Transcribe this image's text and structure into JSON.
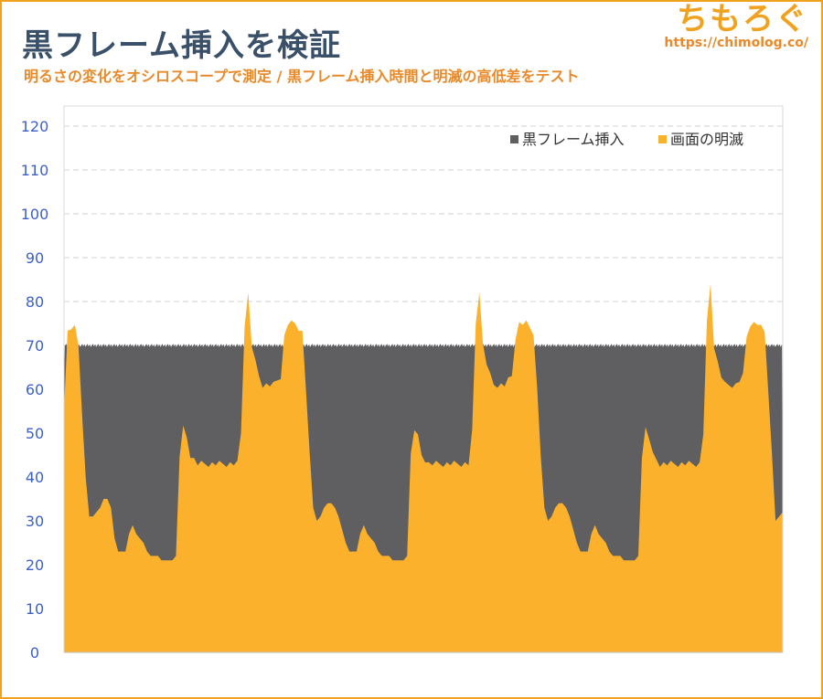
{
  "header": {
    "title": "黒フレーム挿入を検証",
    "subtitle": "明るさの変化をオシロスコープで測定 / 黒フレーム挿入時間と明滅の高低差をテスト",
    "logo_text": "ちもろぐ",
    "logo_url": "https://chimolog.co/"
  },
  "colors": {
    "black_frame": "#5f5f62",
    "flicker": "#fbb12c",
    "frame_border": "#f0a21e",
    "tick_label": "#3c5fcb",
    "gridline": "#d0d0d0"
  },
  "chart_data": {
    "type": "area",
    "title": "",
    "xlabel": "",
    "ylabel": "",
    "ylim": [
      0,
      120
    ],
    "yticks": [
      "0",
      "10",
      "20",
      "30",
      "40",
      "50",
      "60",
      "70",
      "80",
      "90",
      "100",
      "110",
      "120"
    ],
    "grid": true,
    "legend_position": "top-right",
    "series": [
      {
        "name": "黒フレーム挿入",
        "color": "#5f5f62",
        "values": [
          62,
          70,
          70,
          70,
          70,
          70,
          70,
          70,
          70,
          70,
          70,
          70,
          70,
          70,
          70,
          70,
          70,
          70,
          70,
          70,
          70,
          70,
          70,
          70,
          70,
          70,
          70,
          70,
          70,
          70,
          70,
          70,
          70,
          70,
          70,
          70,
          70,
          70,
          70,
          70,
          70,
          70,
          70,
          70,
          70,
          70,
          70,
          70,
          70,
          70,
          70,
          70,
          70,
          70,
          70,
          70,
          70,
          70,
          70,
          70,
          70,
          70,
          70,
          70,
          70,
          70,
          70,
          70,
          70,
          70,
          70,
          70,
          70,
          70,
          70,
          70,
          70,
          70,
          70,
          70,
          70,
          70,
          70,
          70,
          70,
          70,
          70,
          70,
          70,
          70,
          70,
          70,
          70,
          70,
          70,
          70,
          70,
          70,
          70,
          70,
          70,
          70,
          70,
          70,
          70,
          70,
          70,
          70,
          70,
          70,
          70,
          70,
          70,
          70,
          70,
          70,
          70,
          70,
          70,
          70,
          70,
          70,
          70,
          70,
          70,
          70,
          70,
          70,
          70,
          70,
          70,
          70,
          70,
          70,
          70,
          70,
          70,
          70,
          70,
          70,
          70,
          70,
          70,
          70,
          70,
          70,
          70,
          70,
          70,
          70,
          70,
          70,
          70,
          70,
          70,
          70,
          70,
          70,
          70,
          70,
          70,
          70,
          70,
          70,
          70,
          70,
          70,
          70,
          70,
          70,
          70,
          70,
          70,
          70,
          70,
          70,
          70,
          70,
          70,
          70,
          70,
          70,
          70,
          70,
          70,
          70,
          70,
          70,
          70,
          70,
          70,
          70,
          70,
          70,
          70,
          70,
          70,
          70,
          70,
          70,
          70,
          70,
          70,
          70,
          70,
          70,
          70,
          70,
          70,
          70,
          70,
          70,
          70,
          70,
          70,
          70,
          70,
          70,
          70,
          70,
          70,
          70,
          70,
          70,
          70,
          70,
          70,
          70,
          70,
          70,
          70,
          70,
          70,
          70,
          70,
          70,
          70,
          70,
          70,
          70,
          70,
          70,
          70,
          70,
          70,
          70,
          70,
          70,
          70,
          70,
          70,
          70,
          70,
          70,
          70,
          70,
          70,
          70,
          70,
          70,
          70,
          70,
          70,
          70,
          70,
          70,
          70,
          70,
          70,
          70,
          70,
          70,
          70,
          70,
          70,
          70,
          70,
          70,
          70,
          70,
          70,
          70,
          70,
          70,
          70,
          70,
          70,
          70,
          70,
          70,
          70,
          70,
          70,
          70,
          70,
          70,
          70,
          70,
          70,
          70,
          70,
          70,
          70,
          70,
          70,
          70,
          70,
          70,
          70,
          70,
          70,
          70,
          70,
          70,
          70,
          70,
          70,
          70,
          70,
          70,
          70,
          70,
          70,
          70,
          70,
          70,
          70,
          70,
          70,
          70,
          70,
          70,
          70,
          70,
          70,
          70,
          70,
          70,
          70,
          70,
          70,
          70,
          70,
          70,
          70,
          70,
          70,
          70,
          70,
          70,
          70,
          70,
          70,
          70,
          70,
          70,
          70,
          70,
          70,
          70,
          70,
          70,
          70,
          70,
          70,
          70,
          70,
          70,
          70,
          70,
          70,
          70,
          70,
          70,
          70,
          70,
          70,
          70,
          70,
          70,
          70,
          70,
          70,
          70,
          70,
          70,
          70,
          70,
          70,
          70,
          70,
          70,
          70,
          70,
          70,
          70,
          70,
          70,
          70,
          70,
          70,
          70,
          70,
          70,
          70,
          70,
          70,
          70,
          70,
          70,
          70,
          70,
          70,
          70,
          70,
          70,
          70,
          70,
          70,
          70,
          70,
          70,
          70,
          70,
          70,
          70,
          70,
          70,
          70,
          70,
          70,
          70,
          70,
          70,
          70,
          70,
          70,
          70,
          70,
          70,
          70,
          70,
          70,
          70,
          70,
          70,
          70,
          70,
          70,
          70,
          70,
          70,
          70,
          70,
          70,
          70,
          70,
          70,
          70,
          70,
          70,
          70,
          70,
          70,
          70,
          70,
          70,
          70,
          70,
          70,
          70,
          70,
          70,
          70,
          70,
          70,
          70,
          70,
          70,
          70,
          70,
          70,
          70,
          70,
          70,
          70,
          70,
          70,
          70,
          70,
          70,
          70,
          70,
          70,
          70,
          70,
          70,
          70,
          70,
          70,
          70,
          70,
          70,
          70,
          70,
          70,
          70,
          70,
          70,
          70,
          70,
          70,
          70,
          70,
          70,
          70,
          70,
          70,
          70,
          70,
          70,
          70,
          70,
          70,
          70,
          70,
          70,
          70,
          70,
          70,
          70,
          70,
          70,
          70,
          70,
          70,
          70,
          70,
          70,
          70,
          70,
          70,
          70,
          70,
          70,
          70,
          70,
          70,
          70,
          70,
          70,
          70,
          70,
          70,
          70,
          70,
          70,
          70,
          70,
          70,
          70,
          70,
          70,
          70,
          70,
          70,
          70,
          70,
          70,
          70,
          70,
          70,
          70,
          70,
          70,
          70,
          70,
          70,
          70,
          70,
          70,
          70,
          70,
          70,
          70,
          70,
          70,
          70,
          70,
          70,
          70,
          70,
          70,
          70,
          70,
          70,
          70,
          70,
          70,
          70,
          70,
          70,
          70,
          70,
          70,
          70,
          70,
          70,
          70,
          70,
          70,
          70,
          70,
          70,
          70,
          70,
          70,
          70,
          70,
          70,
          70,
          70,
          70,
          70,
          70,
          70,
          70,
          70,
          70,
          70,
          70,
          70,
          70,
          70,
          70,
          70,
          70,
          70,
          70,
          70,
          70,
          70,
          70,
          70,
          70,
          70,
          70,
          70,
          70,
          70,
          70,
          70,
          70,
          70,
          70,
          70,
          70,
          70,
          70,
          70,
          70,
          70,
          70,
          70,
          70,
          70,
          70,
          70,
          70,
          70,
          70,
          70,
          70,
          70,
          70,
          70,
          70,
          70,
          70,
          70,
          70,
          70,
          70,
          70,
          70,
          70,
          70,
          70,
          70,
          70,
          70,
          70,
          70,
          70,
          70,
          70,
          70,
          70,
          70,
          70,
          70,
          70,
          70,
          70,
          70,
          70,
          70,
          70,
          70,
          70,
          70,
          70,
          70,
          70,
          70,
          70,
          70,
          70,
          70,
          70,
          70,
          70,
          70,
          70,
          70,
          70,
          70,
          70,
          70,
          70,
          70,
          70,
          70,
          70,
          70,
          70,
          70,
          70,
          70,
          70,
          70,
          70,
          70,
          70,
          70,
          70,
          70,
          70,
          70,
          70,
          70,
          70,
          70,
          70,
          70,
          70,
          70,
          70,
          70,
          70,
          70,
          70,
          70,
          70,
          70,
          70,
          70,
          70,
          70,
          70,
          70,
          70,
          70,
          70,
          70,
          70,
          70,
          70,
          70,
          70,
          70,
          70,
          70,
          70,
          70,
          70,
          70,
          70,
          70,
          70,
          70,
          70,
          70,
          70,
          70,
          70,
          70,
          70,
          70,
          70,
          70,
          70,
          70,
          70,
          70,
          70,
          70,
          70,
          70,
          70,
          70,
          70,
          70,
          70,
          70,
          70,
          70,
          70,
          70,
          70,
          70,
          70,
          70,
          70,
          70,
          70,
          70,
          70,
          70,
          70,
          70,
          70,
          70,
          70,
          70,
          70,
          70,
          70,
          70,
          70,
          70,
          70,
          70,
          70,
          70,
          70,
          70,
          70,
          70,
          70,
          70,
          70,
          70,
          70,
          70,
          70,
          70,
          70,
          70,
          70,
          70,
          70,
          70,
          70,
          70,
          70,
          70,
          70,
          70,
          70,
          70,
          70,
          70,
          70,
          70,
          70,
          70,
          70,
          70,
          70,
          70,
          70,
          70,
          70,
          70,
          70,
          70,
          70,
          70,
          70,
          70,
          70,
          70,
          70,
          70,
          70,
          70,
          70,
          70,
          70,
          70,
          70,
          70,
          70,
          70,
          70,
          70,
          70,
          70,
          70,
          70,
          70,
          70,
          70,
          70,
          70,
          70,
          70,
          70,
          70,
          70,
          70,
          70,
          70,
          70,
          70,
          70,
          70,
          70,
          70,
          70,
          70,
          70,
          70,
          70,
          70,
          70,
          70,
          70,
          70,
          70,
          30
        ]
      },
      {
        "name": "画面の明滅",
        "color": "#fbb12c",
        "values": [
          56,
          73,
          74,
          74,
          70,
          55,
          40,
          31,
          31,
          32,
          33,
          35,
          35,
          33,
          26,
          23,
          23,
          23,
          27,
          29,
          27,
          26,
          25,
          23,
          22,
          22,
          22,
          21,
          21,
          21,
          21,
          22,
          45,
          51,
          49,
          45,
          44,
          43,
          43,
          43,
          43,
          43,
          43,
          43,
          43,
          43,
          43,
          43,
          43,
          50,
          75,
          82,
          70,
          66,
          63,
          61,
          61,
          61,
          61,
          62,
          63,
          72,
          75,
          75,
          75,
          74,
          73,
          60,
          45,
          33,
          30,
          31,
          33,
          34,
          34,
          33,
          31,
          28,
          25,
          23,
          23,
          23,
          27,
          29,
          27,
          26,
          25,
          23,
          22,
          22,
          22,
          21,
          21,
          21,
          21,
          22,
          45,
          51,
          49,
          45,
          44,
          43,
          43,
          43,
          43,
          43,
          43,
          43,
          43,
          43,
          43,
          43,
          43,
          50,
          75,
          82,
          70,
          66,
          63,
          61,
          61,
          61,
          61,
          62,
          63,
          72,
          75,
          75,
          75,
          74,
          73,
          60,
          45,
          33,
          30,
          31,
          33,
          34,
          34,
          33,
          31,
          28,
          25,
          23,
          23,
          23,
          27,
          29,
          27,
          26,
          25,
          23,
          22,
          22,
          22,
          21,
          21,
          21,
          21,
          22,
          45,
          51,
          49,
          45,
          44,
          43,
          43,
          43,
          43,
          43,
          43,
          43,
          43,
          43,
          43,
          43,
          43,
          50,
          75,
          84,
          70,
          66,
          63,
          61,
          61,
          61,
          61,
          62,
          63,
          72,
          75,
          75,
          75,
          74,
          73,
          60,
          45,
          30,
          31,
          32
        ]
      }
    ]
  }
}
